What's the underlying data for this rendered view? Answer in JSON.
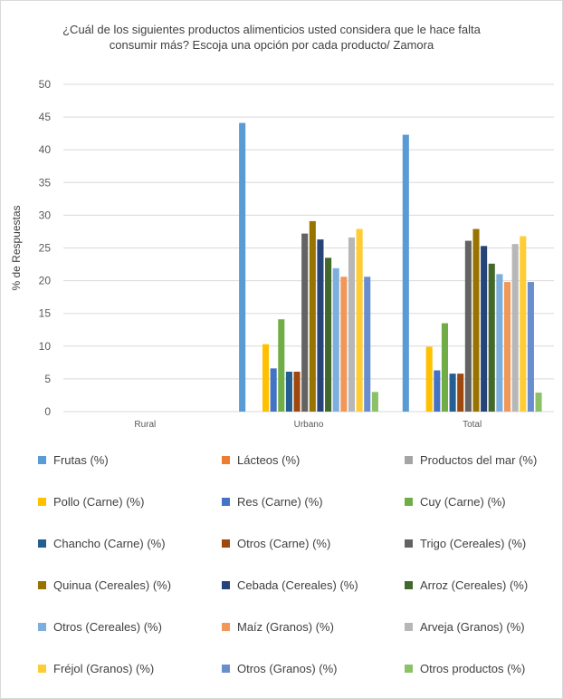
{
  "chart_data": {
    "type": "bar",
    "title_lines": [
      "¿Cuál de los siguientes productos alimenticios usted considera que le hace falta",
      "consumir más? Escoja una opción por cada producto/ Zamora"
    ],
    "xlabel": "",
    "ylabel": "% de Respuestas",
    "ylim": [
      0,
      50
    ],
    "yticks": [
      "0",
      "5",
      "10",
      "15",
      "20",
      "25",
      "30",
      "35",
      "40",
      "45",
      "50"
    ],
    "grid": true,
    "legend_position": "bottom",
    "categories": [
      "Rural",
      "Urbano",
      "Total"
    ],
    "series": [
      {
        "name": "Frutas (%)",
        "color": "#5b9bd5",
        "values": [
          0,
          44.1,
          42.3
        ]
      },
      {
        "name": "Lácteos (%)",
        "color": "#ed7d31",
        "values": [
          0,
          0,
          0
        ]
      },
      {
        "name": "Productos del mar (%)",
        "color": "#a5a5a5",
        "values": [
          0,
          0,
          0
        ]
      },
      {
        "name": "Pollo (Carne) (%)",
        "color": "#ffc000",
        "values": [
          0,
          10.3,
          9.9
        ]
      },
      {
        "name": "Res (Carne) (%)",
        "color": "#4472c4",
        "values": [
          0,
          6.6,
          6.3
        ]
      },
      {
        "name": "Cuy (Carne) (%)",
        "color": "#70ad47",
        "values": [
          0,
          14.1,
          13.5
        ]
      },
      {
        "name": "Chancho (Carne) (%)",
        "color": "#255e91",
        "values": [
          0,
          6.1,
          5.8
        ]
      },
      {
        "name": "Otros (Carne) (%)",
        "color": "#9e480e",
        "values": [
          0,
          6.1,
          5.8
        ]
      },
      {
        "name": "Trigo (Cereales) (%)",
        "color": "#636363",
        "values": [
          0,
          27.2,
          26.1
        ]
      },
      {
        "name": "Quinua (Cereales) (%)",
        "color": "#997300",
        "values": [
          0,
          29.1,
          27.9
        ]
      },
      {
        "name": "Cebada (Cereales) (%)",
        "color": "#264478",
        "values": [
          0,
          26.3,
          25.3
        ]
      },
      {
        "name": "Arroz (Cereales) (%)",
        "color": "#43682b",
        "values": [
          0,
          23.5,
          22.6
        ]
      },
      {
        "name": "Otros (Cereales) (%)",
        "color": "#7cafdd",
        "values": [
          0,
          21.9,
          21.0
        ]
      },
      {
        "name": "Maíz (Granos) (%)",
        "color": "#f1975a",
        "values": [
          0,
          20.6,
          19.8
        ]
      },
      {
        "name": "Arveja (Granos) (%)",
        "color": "#b7b7b7",
        "values": [
          0,
          26.6,
          25.6
        ]
      },
      {
        "name": "Fréjol (Granos) (%)",
        "color": "#ffcd33",
        "values": [
          0,
          27.9,
          26.8
        ]
      },
      {
        "name": "Otros (Granos) (%)",
        "color": "#698ed0",
        "values": [
          0,
          20.6,
          19.8
        ]
      },
      {
        "name": "Otros productos (%)",
        "color": "#8cc168",
        "values": [
          0,
          3.0,
          2.9
        ]
      }
    ]
  }
}
